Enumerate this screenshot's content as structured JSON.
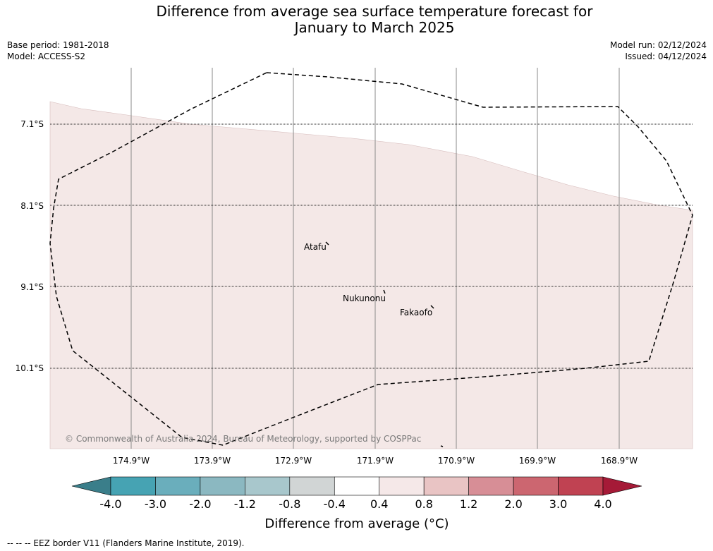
{
  "title_line1": "Difference from average sea surface temperature forecast for",
  "title_line2": "January to March 2025",
  "base_period": "Base period: 1981-2018",
  "model": "Model: ACCESS-S2",
  "model_run": "Model run: 02/12/2024",
  "issued": "Issued: 04/12/2024",
  "lat_labels": [
    "7.1°S",
    "8.1°S",
    "9.1°S",
    "10.1°S"
  ],
  "lon_labels": [
    "174.9°W",
    "173.9°W",
    "172.9°W",
    "171.9°W",
    "170.9°W",
    "169.9°W",
    "168.9°W"
  ],
  "places": [
    {
      "name": "Atafu"
    },
    {
      "name": "Nukunonu"
    },
    {
      "name": "Fakaofo"
    }
  ],
  "credit": "© Commonwealth of Australia 2024, Bureau of Meteorology, supported by COSPPac",
  "colorbar": {
    "ticks": [
      "-4.0",
      "-3.0",
      "-2.0",
      "-1.2",
      "-0.8",
      "-0.4",
      "0.4",
      "0.8",
      "1.2",
      "2.0",
      "3.0",
      "4.0"
    ],
    "colors": [
      "#3a7e8a",
      "#46a3b3",
      "#6aaebc",
      "#8bb8c1",
      "#a8c7cc",
      "#d1d5d5",
      "#ffffff",
      "#f5e8e8",
      "#e9c4c4",
      "#d78e96",
      "#cc6670",
      "#c04252",
      "#a51a37"
    ],
    "label": "Difference from average (°C)"
  },
  "map_fill_color": "#f4e8e7",
  "footnote": "--  --  -- EEZ border V11 (Flanders Marine Institute, 2019)."
}
